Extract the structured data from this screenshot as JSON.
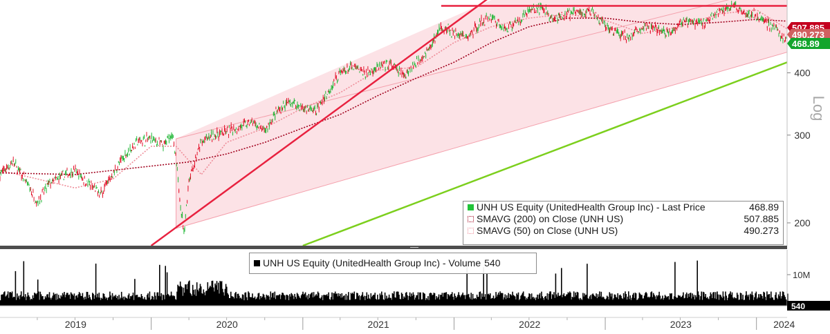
{
  "chart_data": [
    {
      "type": "line",
      "ticker": "UNH US Equity",
      "y_scale": "log",
      "y_axis_label": "Log",
      "ylim": [
        180,
        560
      ],
      "y_ticks": [
        200,
        300,
        400
      ],
      "y_tick_labels": [
        "200",
        "300",
        "400"
      ],
      "x_range": [
        "2019-01-01",
        "2024-03-15"
      ],
      "x_ticks": [
        {
          "date": "2019-01-01",
          "label": "2019"
        },
        {
          "date": "2020-01-01",
          "label": "2020"
        },
        {
          "date": "2021-01-01",
          "label": "2021"
        },
        {
          "date": "2022-01-01",
          "label": "2022"
        },
        {
          "date": "2023-01-01",
          "label": "2023"
        },
        {
          "date": "2024-01-01",
          "label": "2024"
        }
      ],
      "price_path": [
        [
          "2019-01-01",
          250
        ],
        [
          "2019-02-01",
          265
        ],
        [
          "2019-03-01",
          245
        ],
        [
          "2019-04-01",
          220
        ],
        [
          "2019-05-01",
          240
        ],
        [
          "2019-06-01",
          248
        ],
        [
          "2019-07-01",
          255
        ],
        [
          "2019-08-01",
          240
        ],
        [
          "2019-09-01",
          228
        ],
        [
          "2019-10-01",
          252
        ],
        [
          "2019-11-01",
          275
        ],
        [
          "2019-12-01",
          292
        ],
        [
          "2020-01-01",
          295
        ],
        [
          "2020-02-01",
          285
        ],
        [
          "2020-02-20",
          305
        ],
        [
          "2020-03-01",
          265
        ],
        [
          "2020-03-20",
          190
        ],
        [
          "2020-04-01",
          245
        ],
        [
          "2020-05-01",
          290
        ],
        [
          "2020-06-01",
          300
        ],
        [
          "2020-07-01",
          305
        ],
        [
          "2020-08-01",
          312
        ],
        [
          "2020-09-01",
          318
        ],
        [
          "2020-10-01",
          305
        ],
        [
          "2020-11-01",
          335
        ],
        [
          "2020-12-01",
          350
        ],
        [
          "2021-01-01",
          340
        ],
        [
          "2021-02-01",
          335
        ],
        [
          "2021-03-01",
          365
        ],
        [
          "2021-04-01",
          400
        ],
        [
          "2021-05-01",
          410
        ],
        [
          "2021-06-01",
          400
        ],
        [
          "2021-07-01",
          410
        ],
        [
          "2021-08-01",
          415
        ],
        [
          "2021-09-01",
          395
        ],
        [
          "2021-10-01",
          420
        ],
        [
          "2021-11-01",
          445
        ],
        [
          "2021-12-01",
          495
        ],
        [
          "2022-01-01",
          480
        ],
        [
          "2022-02-01",
          470
        ],
        [
          "2022-03-01",
          500
        ],
        [
          "2022-04-01",
          520
        ],
        [
          "2022-05-01",
          490
        ],
        [
          "2022-06-01",
          505
        ],
        [
          "2022-07-01",
          535
        ],
        [
          "2022-08-01",
          540
        ],
        [
          "2022-09-01",
          510
        ],
        [
          "2022-10-01",
          525
        ],
        [
          "2022-11-01",
          530
        ],
        [
          "2022-12-01",
          530
        ],
        [
          "2023-01-01",
          495
        ],
        [
          "2023-02-01",
          480
        ],
        [
          "2023-03-01",
          470
        ],
        [
          "2023-04-01",
          495
        ],
        [
          "2023-05-01",
          490
        ],
        [
          "2023-06-01",
          480
        ],
        [
          "2023-07-01",
          505
        ],
        [
          "2023-08-01",
          505
        ],
        [
          "2023-09-01",
          505
        ],
        [
          "2023-10-01",
          530
        ],
        [
          "2023-11-01",
          545
        ],
        [
          "2023-12-01",
          530
        ],
        [
          "2024-01-01",
          520
        ],
        [
          "2024-01-20",
          510
        ],
        [
          "2024-02-01",
          500
        ],
        [
          "2024-02-20",
          490
        ],
        [
          "2024-03-01",
          470
        ],
        [
          "2024-03-15",
          468.89
        ]
      ],
      "sma200_path": [
        [
          "2019-01-01",
          252
        ],
        [
          "2019-07-01",
          250
        ],
        [
          "2020-01-01",
          260
        ],
        [
          "2020-04-01",
          265
        ],
        [
          "2020-07-01",
          275
        ],
        [
          "2020-10-01",
          290
        ],
        [
          "2021-01-01",
          310
        ],
        [
          "2021-04-01",
          330
        ],
        [
          "2021-07-01",
          360
        ],
        [
          "2021-10-01",
          390
        ],
        [
          "2022-01-01",
          420
        ],
        [
          "2022-04-01",
          460
        ],
        [
          "2022-07-01",
          495
        ],
        [
          "2022-10-01",
          515
        ],
        [
          "2023-01-01",
          515
        ],
        [
          "2023-04-01",
          505
        ],
        [
          "2023-07-01",
          500
        ],
        [
          "2023-10-01",
          505
        ],
        [
          "2024-01-01",
          512
        ],
        [
          "2024-03-15",
          507.885
        ]
      ],
      "sma50_path": [
        [
          "2019-01-01",
          255
        ],
        [
          "2019-04-01",
          245
        ],
        [
          "2019-07-01",
          235
        ],
        [
          "2019-10-01",
          245
        ],
        [
          "2020-01-01",
          285
        ],
        [
          "2020-03-01",
          285
        ],
        [
          "2020-05-01",
          250
        ],
        [
          "2020-07-01",
          290
        ],
        [
          "2020-10-01",
          310
        ],
        [
          "2021-01-01",
          340
        ],
        [
          "2021-04-01",
          365
        ],
        [
          "2021-07-01",
          405
        ],
        [
          "2021-10-01",
          410
        ],
        [
          "2022-01-01",
          460
        ],
        [
          "2022-04-01",
          495
        ],
        [
          "2022-07-01",
          515
        ],
        [
          "2022-10-01",
          525
        ],
        [
          "2023-01-01",
          510
        ],
        [
          "2023-04-01",
          480
        ],
        [
          "2023-07-01",
          495
        ],
        [
          "2023-10-01",
          525
        ],
        [
          "2024-01-01",
          535
        ],
        [
          "2024-03-15",
          490.273
        ]
      ],
      "channel_upper": [
        [
          "2020-03-01",
          295
        ],
        [
          "2022-04-01",
          560
        ]
      ],
      "channel_lower": [
        [
          "2020-03-01",
          195
        ],
        [
          "2024-03-15",
          440
        ]
      ],
      "channel_extended": [
        [
          "2022-04-01",
          560
        ],
        [
          "2024-03-15",
          600
        ]
      ],
      "support_line": [
        [
          "2020-01-01",
          180
        ],
        [
          "2022-04-01",
          570
        ]
      ],
      "green_trendline": [
        [
          "2021-01-01",
          180
        ],
        [
          "2024-03-15",
          420
        ]
      ],
      "resistance_line": {
        "y": 545,
        "from": "2021-12-01",
        "to": "2024-03-15"
      },
      "price_tags": [
        {
          "label": "507.885",
          "value": 507.885,
          "color": "#c4001f"
        },
        {
          "label": "490.273",
          "value": 490.273,
          "color": "#d06060"
        },
        {
          "label": "468.89",
          "value": 468.89,
          "color": "#13a52c"
        }
      ],
      "legend": [
        {
          "swatch": "square",
          "color": "#22c43a",
          "label": "UNH US Equity (UnitedHealth Group Inc) - Last Price",
          "value": "468.89"
        },
        {
          "swatch": "dotted",
          "color": "#a0001c",
          "label": "SMAVG (200)  on Close (UNH US)",
          "value": "507.885"
        },
        {
          "swatch": "dotted",
          "color": "#ee8c98",
          "label": "SMAVG (50)  on Close (UNH US)",
          "value": "490.273"
        }
      ],
      "legend_position": "bottom-right"
    },
    {
      "type": "bar",
      "ticker": "UNH US Equity",
      "y_ticks": [
        {
          "value": 10,
          "label": "10M"
        }
      ],
      "ylim": [
        0,
        18
      ],
      "last_value": "540",
      "legend": [
        {
          "swatch": "square",
          "color": "#000000",
          "label": "UNH US Equity (UnitedHealth Group Inc) - Volume",
          "value": "540"
        }
      ],
      "legend_position": "top-left"
    }
  ]
}
